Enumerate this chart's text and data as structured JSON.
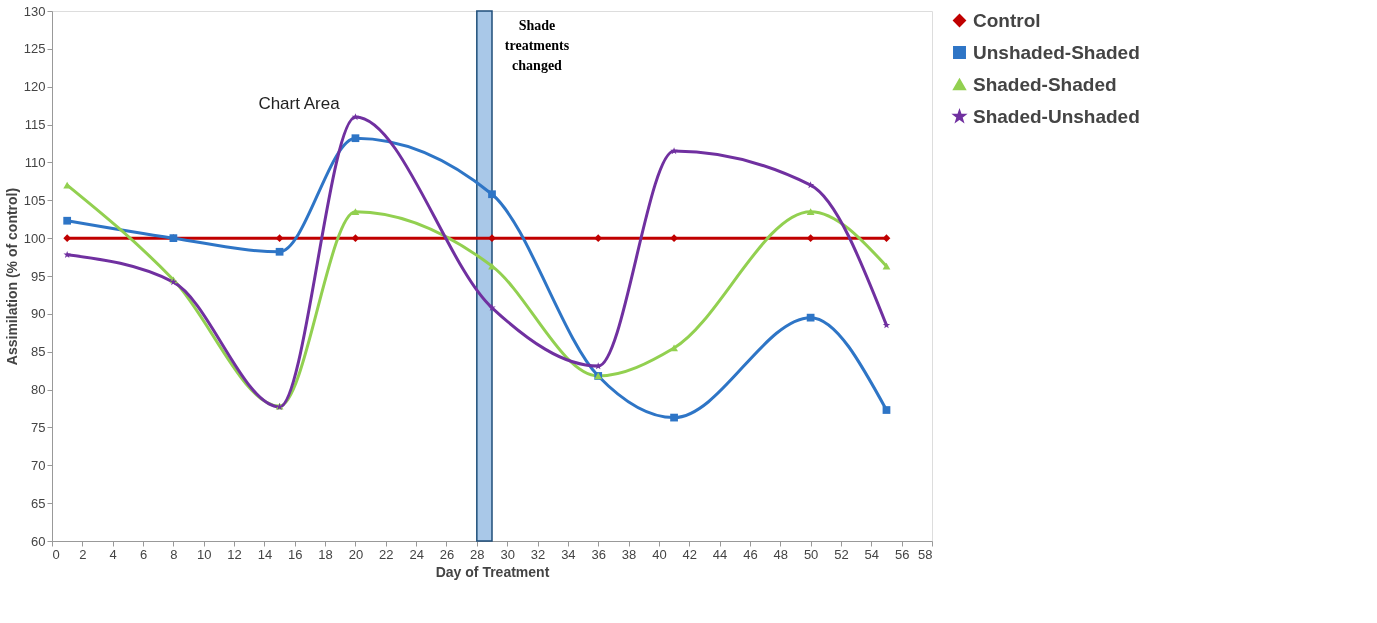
{
  "chart_data": {
    "type": "line",
    "xlabel": "Day of Treatment",
    "ylabel": "Assimilation (% of control)",
    "x": [
      1,
      8,
      15,
      20,
      29,
      36,
      41,
      50,
      55
    ],
    "series": [
      {
        "name": "Control",
        "color": "#c00000",
        "marker": "diamond",
        "values": [
          100,
          100,
          100,
          100,
          100,
          100,
          100,
          100,
          100
        ]
      },
      {
        "name": "Unshaded-Shaded",
        "color": "#2e75c6",
        "marker": "square",
        "values": [
          102.3,
          100,
          98.2,
          113.2,
          105.8,
          81.8,
          76.3,
          89.5,
          77.3
        ]
      },
      {
        "name": "Shaded-Shaded",
        "color": "#92d050",
        "marker": "triangle",
        "values": [
          107,
          94.5,
          77.8,
          103.5,
          96.3,
          81.8,
          85.5,
          103.5,
          96.3
        ]
      },
      {
        "name": "Shaded-Unshaded",
        "color": "#7030a0",
        "marker": "star",
        "values": [
          97.8,
          94.2,
          77.7,
          116,
          90.8,
          83.1,
          111.5,
          107,
          88.5
        ]
      }
    ],
    "xlim": [
      0,
      58
    ],
    "xticks": [
      0,
      2,
      4,
      6,
      8,
      10,
      12,
      14,
      16,
      18,
      20,
      22,
      24,
      26,
      28,
      30,
      32,
      34,
      36,
      38,
      40,
      42,
      44,
      46,
      48,
      50,
      52,
      54,
      56,
      58
    ],
    "ylim": [
      60,
      130
    ],
    "yticks": [
      60,
      65,
      70,
      75,
      80,
      85,
      90,
      95,
      100,
      105,
      110,
      115,
      120,
      125,
      130
    ],
    "bands": [
      {
        "axis": "x",
        "from": 28,
        "to": 29,
        "label": "Shade treatments changed",
        "color": "#a9c8e8"
      }
    ],
    "annotations": [
      "Chart Area"
    ],
    "grid": false,
    "legend": "right",
    "line_style": "solid"
  }
}
